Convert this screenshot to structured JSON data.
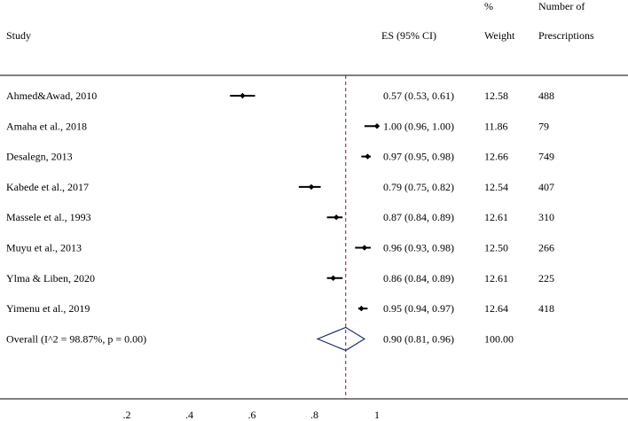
{
  "headers": {
    "study": "Study",
    "es": "ES (95% CI)",
    "weight_top": "%",
    "weight": "Weight",
    "number_top": "Number of",
    "number": "Prescriptions"
  },
  "chart_data": {
    "type": "forest",
    "x_axis_ticks": [
      ".2",
      ".4",
      ".6",
      ".8",
      "1"
    ],
    "xlim": [
      0.0,
      1.12
    ],
    "reference_line": 0.9,
    "line_color": "#8b1a1a",
    "studies": [
      {
        "label": "Ahmed&Awad, 2010",
        "es": 0.57,
        "lo": 0.53,
        "hi": 0.61,
        "es_text": "0.57 (0.53, 0.61)",
        "weight": "12.58",
        "n": "488"
      },
      {
        "label": "Amaha et al., 2018",
        "es": 1.0,
        "lo": 0.96,
        "hi": 1.0,
        "es_text": "1.00 (0.96, 1.00)",
        "weight": "11.86",
        "n": "79"
      },
      {
        "label": "Desalegn, 2013",
        "es": 0.97,
        "lo": 0.95,
        "hi": 0.98,
        "es_text": "0.97 (0.95, 0.98)",
        "weight": "12.66",
        "n": "749"
      },
      {
        "label": "Kabede et al., 2017",
        "es": 0.79,
        "lo": 0.75,
        "hi": 0.82,
        "es_text": "0.79 (0.75, 0.82)",
        "weight": "12.54",
        "n": "407"
      },
      {
        "label": "Massele et al., 1993",
        "es": 0.87,
        "lo": 0.84,
        "hi": 0.89,
        "es_text": "0.87 (0.84, 0.89)",
        "weight": "12.61",
        "n": "310"
      },
      {
        "label": "Muyu et al., 2013",
        "es": 0.96,
        "lo": 0.93,
        "hi": 0.98,
        "es_text": "0.96 (0.93, 0.98)",
        "weight": "12.50",
        "n": "266"
      },
      {
        "label": "Ylma & Liben, 2020",
        "es": 0.86,
        "lo": 0.84,
        "hi": 0.89,
        "es_text": "0.86 (0.84, 0.89)",
        "weight": "12.61",
        "n": "225"
      },
      {
        "label": "Yimenu et al., 2019",
        "es": 0.95,
        "lo": 0.94,
        "hi": 0.97,
        "es_text": "0.95 (0.94, 0.97)",
        "weight": "12.64",
        "n": "418"
      }
    ],
    "overall": {
      "label": "Overall  (I^2 = 98.87%, p = 0.00)",
      "es": 0.9,
      "lo": 0.81,
      "hi": 0.96,
      "es_text": "0.90 (0.81, 0.96)",
      "weight": "100.00"
    }
  }
}
